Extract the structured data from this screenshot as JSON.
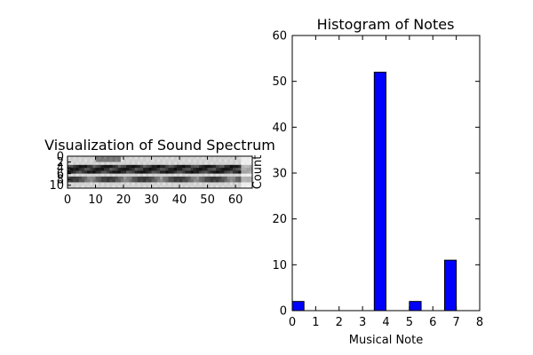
{
  "chart_data": [
    {
      "type": "heatmap",
      "title": "Visualization of Sound Spectrum",
      "ylabel": "Count",
      "colormap": "gray_r",
      "xlim": [
        0,
        66
      ],
      "ylim": [
        11,
        0
      ],
      "xticks": [
        0,
        10,
        20,
        30,
        40,
        50,
        60
      ],
      "yticks": [
        0,
        2,
        4,
        6,
        8,
        10
      ],
      "rows": 11,
      "cols": 66
    },
    {
      "type": "bar",
      "title": "Histogram of Notes",
      "xlabel": "Musical Note",
      "ylabel": "",
      "bar_color": "#0000ff",
      "xlim": [
        0,
        8
      ],
      "ylim": [
        0,
        60
      ],
      "xticks": [
        0,
        1,
        2,
        3,
        4,
        5,
        6,
        7,
        8
      ],
      "yticks": [
        0,
        10,
        20,
        30,
        40,
        50,
        60
      ],
      "bins": [
        {
          "start": 0.0,
          "end": 0.5,
          "value": 2
        },
        {
          "start": 0.5,
          "end": 1.0,
          "value": 0
        },
        {
          "start": 1.0,
          "end": 1.5,
          "value": 0
        },
        {
          "start": 1.5,
          "end": 2.0,
          "value": 0
        },
        {
          "start": 2.0,
          "end": 2.5,
          "value": 0
        },
        {
          "start": 2.5,
          "end": 3.0,
          "value": 0
        },
        {
          "start": 3.0,
          "end": 3.5,
          "value": 0
        },
        {
          "start": 3.5,
          "end": 4.0,
          "value": 52
        },
        {
          "start": 4.0,
          "end": 4.5,
          "value": 0
        },
        {
          "start": 4.5,
          "end": 5.0,
          "value": 0
        },
        {
          "start": 5.0,
          "end": 5.5,
          "value": 2
        },
        {
          "start": 5.5,
          "end": 6.0,
          "value": 0
        },
        {
          "start": 6.0,
          "end": 6.5,
          "value": 0
        },
        {
          "start": 6.5,
          "end": 7.0,
          "value": 11
        }
      ]
    }
  ]
}
